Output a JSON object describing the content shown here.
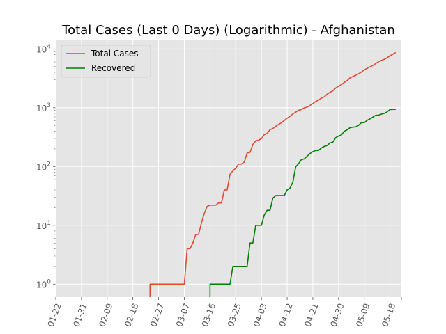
{
  "chart_data": {
    "type": "line",
    "title": "Total Cases (Last 0 Days) (Logarithmic) - Afghanistan",
    "xlabel": "",
    "ylabel": "",
    "yscale": "log",
    "ylim": [
      0.6,
      14000
    ],
    "xlim": [
      "2020-01-22",
      "2020-05-22"
    ],
    "grid": true,
    "legend_position": "top-left",
    "x_tick_labels": [
      "01-22",
      "01-31",
      "02-09",
      "02-18",
      "02-27",
      "03-07",
      "03-16",
      "03-25",
      "04-03",
      "04-12",
      "04-21",
      "04-30",
      "05-09",
      "05-18"
    ],
    "y_tick_labels": [
      "10^0",
      "10^1",
      "10^2",
      "10^3",
      "10^4"
    ],
    "series": [
      {
        "name": "Total Cases",
        "color": "#E24A33",
        "points": [
          [
            "2020-02-24",
            1
          ],
          [
            "2020-03-07",
            1
          ],
          [
            "2020-03-08",
            4
          ],
          [
            "2020-03-09",
            4
          ],
          [
            "2020-03-10",
            5
          ],
          [
            "2020-03-11",
            7
          ],
          [
            "2020-03-12",
            7
          ],
          [
            "2020-03-13",
            11
          ],
          [
            "2020-03-14",
            16
          ],
          [
            "2020-03-15",
            21
          ],
          [
            "2020-03-16",
            22
          ],
          [
            "2020-03-17",
            22
          ],
          [
            "2020-03-18",
            22
          ],
          [
            "2020-03-19",
            24
          ],
          [
            "2020-03-20",
            24
          ],
          [
            "2020-03-21",
            40
          ],
          [
            "2020-03-22",
            40
          ],
          [
            "2020-03-23",
            74
          ],
          [
            "2020-03-24",
            84
          ],
          [
            "2020-03-25",
            94
          ],
          [
            "2020-03-26",
            110
          ],
          [
            "2020-03-27",
            110
          ],
          [
            "2020-03-28",
            120
          ],
          [
            "2020-03-29",
            170
          ],
          [
            "2020-03-30",
            174
          ],
          [
            "2020-03-31",
            237
          ],
          [
            "2020-04-01",
            273
          ],
          [
            "2020-04-02",
            281
          ],
          [
            "2020-04-03",
            299
          ],
          [
            "2020-04-04",
            349
          ],
          [
            "2020-04-05",
            367
          ],
          [
            "2020-04-06",
            423
          ],
          [
            "2020-04-07",
            444
          ],
          [
            "2020-04-08",
            484
          ],
          [
            "2020-04-09",
            521
          ],
          [
            "2020-04-10",
            555
          ],
          [
            "2020-04-11",
            607
          ],
          [
            "2020-04-12",
            665
          ],
          [
            "2020-04-13",
            714
          ],
          [
            "2020-04-14",
            784
          ],
          [
            "2020-04-15",
            840
          ],
          [
            "2020-04-16",
            906
          ],
          [
            "2020-04-17",
            933
          ],
          [
            "2020-04-18",
            996
          ],
          [
            "2020-04-19",
            1026
          ],
          [
            "2020-04-20",
            1092
          ],
          [
            "2020-04-21",
            1176
          ],
          [
            "2020-04-22",
            1279
          ],
          [
            "2020-04-23",
            1351
          ],
          [
            "2020-04-24",
            1463
          ],
          [
            "2020-04-25",
            1531
          ],
          [
            "2020-04-26",
            1703
          ],
          [
            "2020-04-27",
            1828
          ],
          [
            "2020-04-28",
            1939
          ],
          [
            "2020-04-29",
            2171
          ],
          [
            "2020-04-30",
            2335
          ],
          [
            "2020-05-01",
            2469
          ],
          [
            "2020-05-02",
            2704
          ],
          [
            "2020-05-03",
            2894
          ],
          [
            "2020-05-04",
            3224
          ],
          [
            "2020-05-05",
            3392
          ],
          [
            "2020-05-06",
            3563
          ],
          [
            "2020-05-07",
            3778
          ],
          [
            "2020-05-08",
            4033
          ],
          [
            "2020-05-09",
            4402
          ],
          [
            "2020-05-10",
            4687
          ],
          [
            "2020-05-11",
            4963
          ],
          [
            "2020-05-12",
            5226
          ],
          [
            "2020-05-13",
            5639
          ],
          [
            "2020-05-14",
            6053
          ],
          [
            "2020-05-15",
            6402
          ],
          [
            "2020-05-16",
            6664
          ],
          [
            "2020-05-17",
            7072
          ],
          [
            "2020-05-18",
            7653
          ],
          [
            "2020-05-19",
            8145
          ],
          [
            "2020-05-20",
            8676
          ]
        ]
      },
      {
        "name": "Recovered",
        "color": "#008000",
        "points": [
          [
            "2020-03-16",
            1
          ],
          [
            "2020-03-23",
            1
          ],
          [
            "2020-03-24",
            2
          ],
          [
            "2020-03-29",
            2
          ],
          [
            "2020-03-30",
            5
          ],
          [
            "2020-03-31",
            5
          ],
          [
            "2020-04-01",
            10
          ],
          [
            "2020-04-03",
            10
          ],
          [
            "2020-04-04",
            15
          ],
          [
            "2020-04-05",
            18
          ],
          [
            "2020-04-06",
            18
          ],
          [
            "2020-04-07",
            29
          ],
          [
            "2020-04-08",
            32
          ],
          [
            "2020-04-11",
            32
          ],
          [
            "2020-04-12",
            40
          ],
          [
            "2020-04-13",
            43
          ],
          [
            "2020-04-14",
            54
          ],
          [
            "2020-04-15",
            99
          ],
          [
            "2020-04-16",
            112
          ],
          [
            "2020-04-17",
            131
          ],
          [
            "2020-04-18",
            135
          ],
          [
            "2020-04-19",
            150
          ],
          [
            "2020-04-20",
            166
          ],
          [
            "2020-04-21",
            179
          ],
          [
            "2020-04-22",
            188
          ],
          [
            "2020-04-23",
            188
          ],
          [
            "2020-04-24",
            207
          ],
          [
            "2020-04-25",
            220
          ],
          [
            "2020-04-26",
            228
          ],
          [
            "2020-04-27",
            252
          ],
          [
            "2020-04-28",
            260
          ],
          [
            "2020-04-29",
            310
          ],
          [
            "2020-04-30",
            331
          ],
          [
            "2020-05-01",
            345
          ],
          [
            "2020-05-02",
            397
          ],
          [
            "2020-05-03",
            421
          ],
          [
            "2020-05-04",
            458
          ],
          [
            "2020-05-05",
            468
          ],
          [
            "2020-05-06",
            472
          ],
          [
            "2020-05-07",
            502
          ],
          [
            "2020-05-08",
            558
          ],
          [
            "2020-05-09",
            558
          ],
          [
            "2020-05-10",
            610
          ],
          [
            "2020-05-11",
            648
          ],
          [
            "2020-05-12",
            691
          ],
          [
            "2020-05-13",
            745
          ],
          [
            "2020-05-14",
            745
          ],
          [
            "2020-05-15",
            778
          ],
          [
            "2020-05-16",
            801
          ],
          [
            "2020-05-17",
            850
          ],
          [
            "2020-05-18",
            930
          ],
          [
            "2020-05-19",
            938
          ],
          [
            "2020-05-20",
            938
          ]
        ]
      }
    ]
  }
}
